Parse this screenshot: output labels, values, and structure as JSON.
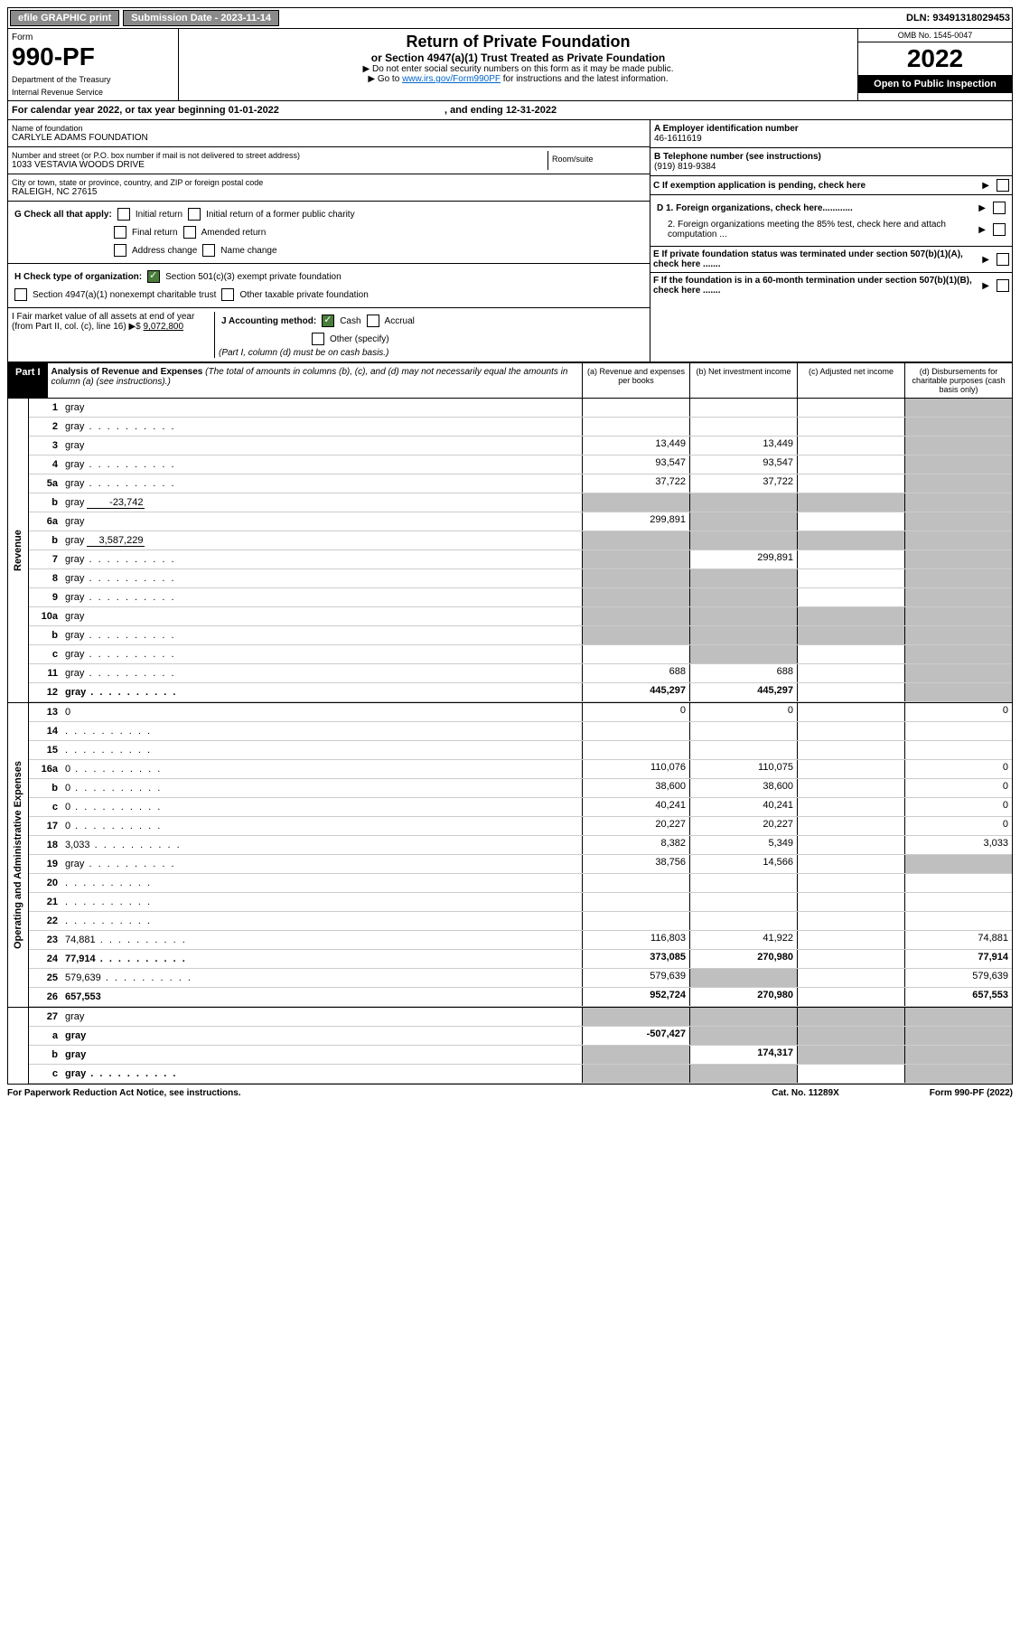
{
  "top": {
    "efile": "efile GRAPHIC print",
    "sub_date_label": "Submission Date - 2023-11-14",
    "dln": "DLN: 93491318029453"
  },
  "hdr": {
    "form": "Form",
    "num": "990-PF",
    "dept": "Department of the Treasury",
    "irs": "Internal Revenue Service",
    "title": "Return of Private Foundation",
    "sub": "or Section 4947(a)(1) Trust Treated as Private Foundation",
    "line1": "▶ Do not enter social security numbers on this form as it may be made public.",
    "line2a": "▶ Go to ",
    "link": "www.irs.gov/Form990PF",
    "line2b": " for instructions and the latest information.",
    "omb": "OMB No. 1545-0047",
    "year": "2022",
    "open": "Open to Public Inspection"
  },
  "cal": "For calendar year 2022, or tax year beginning 01-01-2022",
  "cal_end": ", and ending 12-31-2022",
  "name_lbl": "Name of foundation",
  "name": "CARLYLE ADAMS FOUNDATION",
  "addr_lbl": "Number and street (or P.O. box number if mail is not delivered to street address)",
  "addr": "1033 VESTAVIA WOODS DRIVE",
  "room_lbl": "Room/suite",
  "city_lbl": "City or town, state or province, country, and ZIP or foreign postal code",
  "city": "RALEIGH, NC  27615",
  "a_lbl": "A Employer identification number",
  "a_val": "46-1611619",
  "b_lbl": "B Telephone number (see instructions)",
  "b_val": "(919) 819-9384",
  "c_lbl": "C If exemption application is pending, check here",
  "g_lbl": "G Check all that apply:",
  "g_opts": [
    "Initial return",
    "Initial return of a former public charity",
    "Final return",
    "Amended return",
    "Address change",
    "Name change"
  ],
  "h_lbl": "H Check type of organization:",
  "h1": "Section 501(c)(3) exempt private foundation",
  "h2": "Section 4947(a)(1) nonexempt charitable trust",
  "h3": "Other taxable private foundation",
  "i_lbl": "I Fair market value of all assets at end of year (from Part II, col. (c), line 16) ▶$",
  "i_val": "9,072,800",
  "j_lbl": "J Accounting method:",
  "j1": "Cash",
  "j2": "Accrual",
  "j3": "Other (specify)",
  "j_note": "(Part I, column (d) must be on cash basis.)",
  "d1": "D 1. Foreign organizations, check here............",
  "d2": "2. Foreign organizations meeting the 85% test, check here and attach computation ...",
  "e_lbl": "E  If private foundation status was terminated under section 507(b)(1)(A), check here .......",
  "f_lbl": "F  If the foundation is in a 60-month termination under section 507(b)(1)(B), check here .......",
  "part1": "Part I",
  "part1_title": "Analysis of Revenue and Expenses",
  "part1_note": "(The total of amounts in columns (b), (c), and (d) may not necessarily equal the amounts in column (a) (see instructions).)",
  "ch": {
    "a": "(a)  Revenue and expenses per books",
    "b": "(b)  Net investment income",
    "c": "(c)  Adjusted net income",
    "d": "(d)  Disbursements for charitable purposes (cash basis only)"
  },
  "side": {
    "rev": "Revenue",
    "exp": "Operating and Administrative Expenses"
  },
  "rows": [
    {
      "n": "1",
      "d": "gray",
      "a": "",
      "b": "",
      "c": ""
    },
    {
      "n": "2",
      "d": "gray",
      "dots": true,
      "a": "",
      "b": "",
      "c": ""
    },
    {
      "n": "3",
      "d": "gray",
      "a": "13,449",
      "b": "13,449",
      "c": ""
    },
    {
      "n": "4",
      "d": "gray",
      "dots": true,
      "a": "93,547",
      "b": "93,547",
      "c": ""
    },
    {
      "n": "5a",
      "d": "gray",
      "dots": true,
      "a": "37,722",
      "b": "37,722",
      "c": ""
    },
    {
      "n": "b",
      "d": "gray",
      "inline": "-23,742",
      "a": "gray",
      "b": "gray",
      "c": "gray"
    },
    {
      "n": "6a",
      "d": "gray",
      "a": "299,891",
      "b": "gray",
      "c": ""
    },
    {
      "n": "b",
      "d": "gray",
      "inline": "3,587,229",
      "a": "gray",
      "b": "gray",
      "c": "gray"
    },
    {
      "n": "7",
      "d": "gray",
      "dots": true,
      "a": "gray",
      "b": "299,891",
      "c": ""
    },
    {
      "n": "8",
      "d": "gray",
      "dots": true,
      "a": "gray",
      "b": "gray",
      "c": ""
    },
    {
      "n": "9",
      "d": "gray",
      "dots": true,
      "a": "gray",
      "b": "gray",
      "c": ""
    },
    {
      "n": "10a",
      "d": "gray",
      "a": "gray",
      "b": "gray",
      "c": "gray"
    },
    {
      "n": "b",
      "d": "gray",
      "dots": true,
      "a": "gray",
      "b": "gray",
      "c": "gray"
    },
    {
      "n": "c",
      "d": "gray",
      "dots": true,
      "a": "",
      "b": "gray",
      "c": ""
    },
    {
      "n": "11",
      "d": "gray",
      "dots": true,
      "a": "688",
      "b": "688",
      "c": ""
    },
    {
      "n": "12",
      "d": "gray",
      "dots": true,
      "a": "445,297",
      "b": "445,297",
      "c": "",
      "bold": true
    }
  ],
  "exp_rows": [
    {
      "n": "13",
      "d": "0",
      "a": "0",
      "b": "0",
      "c": ""
    },
    {
      "n": "14",
      "d": "",
      "dots": true,
      "a": "",
      "b": "",
      "c": ""
    },
    {
      "n": "15",
      "d": "",
      "dots": true,
      "a": "",
      "b": "",
      "c": ""
    },
    {
      "n": "16a",
      "d": "0",
      "dots": true,
      "a": "110,076",
      "b": "110,075",
      "c": ""
    },
    {
      "n": "b",
      "d": "0",
      "dots": true,
      "a": "38,600",
      "b": "38,600",
      "c": ""
    },
    {
      "n": "c",
      "d": "0",
      "dots": true,
      "a": "40,241",
      "b": "40,241",
      "c": ""
    },
    {
      "n": "17",
      "d": "0",
      "dots": true,
      "a": "20,227",
      "b": "20,227",
      "c": ""
    },
    {
      "n": "18",
      "d": "3,033",
      "dots": true,
      "a": "8,382",
      "b": "5,349",
      "c": ""
    },
    {
      "n": "19",
      "d": "gray",
      "dots": true,
      "a": "38,756",
      "b": "14,566",
      "c": ""
    },
    {
      "n": "20",
      "d": "",
      "dots": true,
      "a": "",
      "b": "",
      "c": ""
    },
    {
      "n": "21",
      "d": "",
      "dots": true,
      "a": "",
      "b": "",
      "c": ""
    },
    {
      "n": "22",
      "d": "",
      "dots": true,
      "a": "",
      "b": "",
      "c": ""
    },
    {
      "n": "23",
      "d": "74,881",
      "dots": true,
      "a": "116,803",
      "b": "41,922",
      "c": ""
    },
    {
      "n": "24",
      "d": "77,914",
      "dots": true,
      "a": "373,085",
      "b": "270,980",
      "c": "",
      "bold": true
    },
    {
      "n": "25",
      "d": "579,639",
      "dots": true,
      "a": "579,639",
      "b": "gray",
      "c": ""
    },
    {
      "n": "26",
      "d": "657,553",
      "a": "952,724",
      "b": "270,980",
      "c": "",
      "bold": true
    }
  ],
  "bot_rows": [
    {
      "n": "27",
      "d": "gray",
      "a": "gray",
      "b": "gray",
      "c": "gray"
    },
    {
      "n": "a",
      "d": "gray",
      "a": "-507,427",
      "b": "gray",
      "c": "gray",
      "bold": true
    },
    {
      "n": "b",
      "d": "gray",
      "a": "gray",
      "b": "174,317",
      "c": "gray",
      "bold": true
    },
    {
      "n": "c",
      "d": "gray",
      "dots": true,
      "a": "gray",
      "b": "gray",
      "c": "",
      "bold": true
    }
  ],
  "foot": {
    "l": "For Paperwork Reduction Act Notice, see instructions.",
    "c": "Cat. No. 11289X",
    "r": "Form 990-PF (2022)"
  }
}
